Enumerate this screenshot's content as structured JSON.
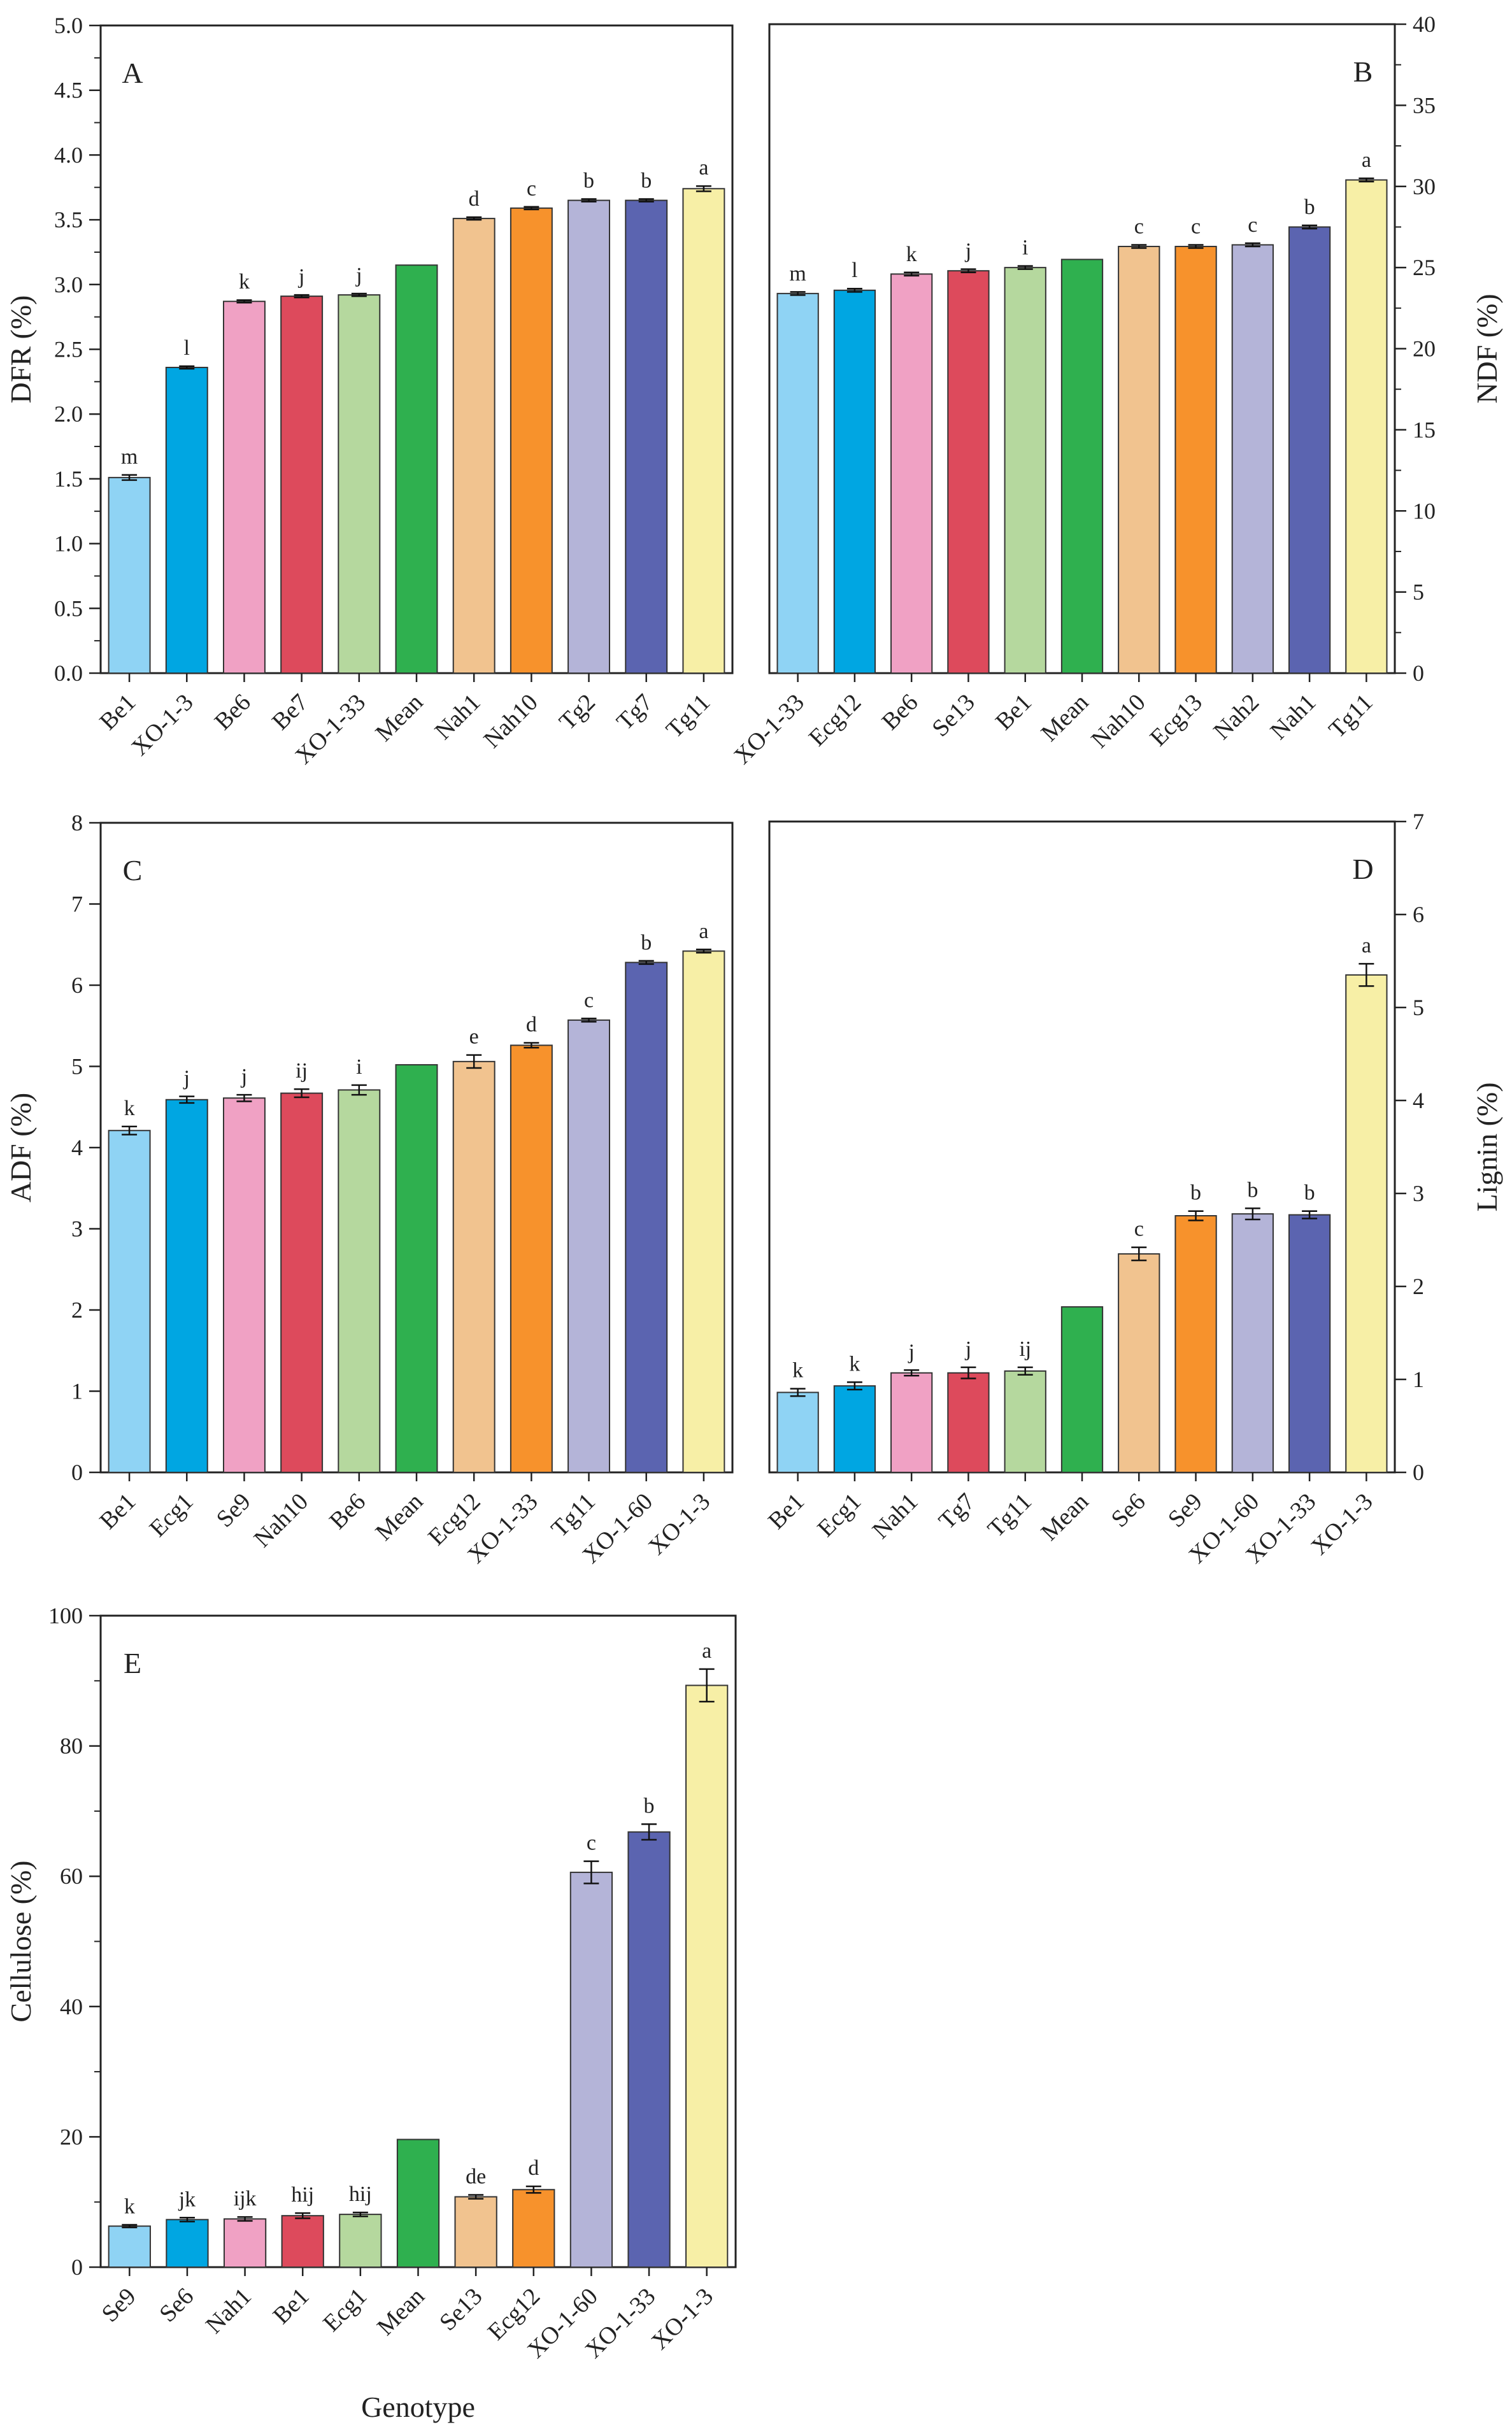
{
  "colors": [
    "#8fd3f4",
    "#00a6e2",
    "#f0a1c4",
    "#dd4a5c",
    "#b5d89e",
    "#2fb04f",
    "#f1c38f",
    "#f7922c",
    "#b4b4d8",
    "#5b64b0",
    "#f7efa6"
  ],
  "chart_data": [
    {
      "type": "bar",
      "panel": "A",
      "ylabel": "DFR (%)",
      "y_axis_side": "left",
      "ylim": [
        0,
        5.0
      ],
      "ytick_step": 0.5,
      "ytick_decimals": 1,
      "minor_ticks": true,
      "categories": [
        "Be1",
        "XO-1-3",
        "Be6",
        "Be7",
        "XO-1-33",
        "Mean",
        "Nah1",
        "Nah10",
        "Tg2",
        "Tg7",
        "Tg11"
      ],
      "values": [
        1.51,
        2.36,
        2.87,
        2.91,
        2.92,
        3.15,
        3.51,
        3.59,
        3.65,
        3.65,
        3.74
      ],
      "errors": [
        0.02,
        0.01,
        0.01,
        0.01,
        0.01,
        0,
        0.01,
        0.01,
        0.01,
        0.01,
        0.02
      ],
      "labels": [
        "m",
        "l",
        "k",
        "j",
        "j",
        "",
        "d",
        "c",
        "b",
        "b",
        "a"
      ]
    },
    {
      "type": "bar",
      "panel": "B",
      "ylabel": "NDF (%)",
      "y_axis_side": "right",
      "ylim": [
        0,
        40
      ],
      "ytick_step": 5,
      "ytick_decimals": 0,
      "minor_ticks": true,
      "categories": [
        "XO-1-33",
        "Ecg12",
        "Be6",
        "Se13",
        "Be1",
        "Mean",
        "Nah10",
        "Ecg13",
        "Nah2",
        "Nah1",
        "Tg11"
      ],
      "values": [
        23.4,
        23.6,
        24.6,
        24.8,
        25.0,
        25.5,
        26.3,
        26.3,
        26.4,
        27.5,
        30.4
      ],
      "errors": [
        0.1,
        0.1,
        0.1,
        0.1,
        0.1,
        0,
        0.1,
        0.1,
        0.1,
        0.1,
        0.1
      ],
      "labels": [
        "m",
        "l",
        "k",
        "j",
        "i",
        "",
        "c",
        "c",
        "c",
        "b",
        "a"
      ]
    },
    {
      "type": "bar",
      "panel": "C",
      "ylabel": "ADF (%)",
      "y_axis_side": "left",
      "ylim": [
        0,
        8
      ],
      "ytick_step": 1,
      "ytick_decimals": 0,
      "minor_ticks": false,
      "categories": [
        "Be1",
        "Ecg1",
        "Se9",
        "Nah10",
        "Be6",
        "Mean",
        "Ecg12",
        "XO-1-33",
        "Tg11",
        "XO-1-60",
        "XO-1-3"
      ],
      "values": [
        4.21,
        4.59,
        4.61,
        4.67,
        4.71,
        5.02,
        5.06,
        5.26,
        5.57,
        6.28,
        6.42
      ],
      "errors": [
        0.05,
        0.04,
        0.04,
        0.05,
        0.06,
        0,
        0.08,
        0.03,
        0.02,
        0.02,
        0.02
      ],
      "labels": [
        "k",
        "j",
        "j",
        "ij",
        "i",
        "",
        "e",
        "d",
        "c",
        "b",
        "a"
      ]
    },
    {
      "type": "bar",
      "panel": "D",
      "ylabel": "Lignin (%)",
      "y_axis_side": "right",
      "ylim": [
        0,
        7
      ],
      "ytick_step": 1,
      "ytick_decimals": 0,
      "minor_ticks": false,
      "categories": [
        "Be1",
        "Ecg1",
        "Nah1",
        "Tg7",
        "Tg11",
        "Mean",
        "Se6",
        "Se9",
        "XO-1-60",
        "XO-1-33",
        "XO-1-3"
      ],
      "values": [
        0.86,
        0.93,
        1.07,
        1.07,
        1.09,
        1.78,
        2.35,
        2.76,
        2.78,
        2.77,
        5.35
      ],
      "errors": [
        0.04,
        0.04,
        0.03,
        0.06,
        0.04,
        0,
        0.07,
        0.05,
        0.06,
        0.04,
        0.12
      ],
      "labels": [
        "k",
        "k",
        "j",
        "j",
        "ij",
        "",
        "c",
        "b",
        "b",
        "b",
        "a"
      ]
    },
    {
      "type": "bar",
      "panel": "E",
      "ylabel": "Cellulose (%)",
      "y_axis_side": "left",
      "xlabel": "Genotype",
      "ylim": [
        0,
        100
      ],
      "ytick_step": 20,
      "ytick_decimals": 0,
      "minor_ticks": true,
      "categories": [
        "Se9",
        "Se6",
        "Nah1",
        "Be1",
        "Ecg1",
        "Mean",
        "Se13",
        "Ecg12",
        "XO-1-60",
        "XO-1-33",
        "XO-1-3"
      ],
      "values": [
        6.3,
        7.3,
        7.4,
        7.9,
        8.1,
        19.6,
        10.8,
        11.9,
        60.6,
        66.8,
        89.3
      ],
      "errors": [
        0.2,
        0.3,
        0.3,
        0.4,
        0.3,
        0,
        0.3,
        0.5,
        1.7,
        1.2,
        2.5
      ],
      "labels": [
        "k",
        "jk",
        "ijk",
        "hij",
        "hij",
        "",
        "de",
        "d",
        "c",
        "b",
        "a"
      ]
    }
  ]
}
